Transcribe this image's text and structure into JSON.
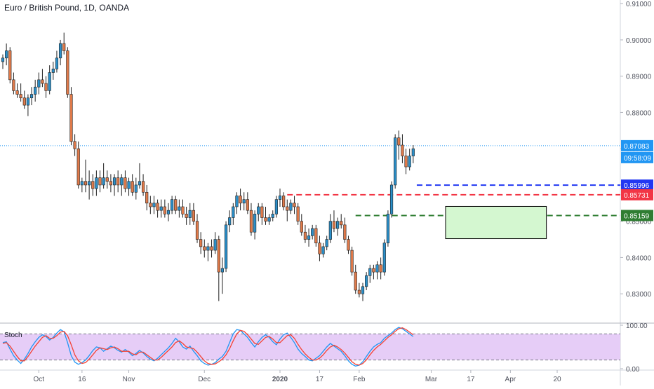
{
  "chart_data": {
    "type": "candlestick",
    "title": "Euro / British Pound, 1D, OANDA",
    "main_axis": {
      "ylim": [
        0.8225,
        0.911
      ],
      "ticks": [
        "0.91000",
        "0.90000",
        "0.89000",
        "0.88000",
        "0.87000",
        "0.86000",
        "0.85000",
        "0.84000",
        "0.83000"
      ]
    },
    "x_axis": {
      "labels": [
        {
          "label": "Oct",
          "index": 10
        },
        {
          "label": "16",
          "index": 22
        },
        {
          "label": "Nov",
          "index": 35
        },
        {
          "label": "Dec",
          "index": 56
        },
        {
          "label": "2020",
          "index": 77
        },
        {
          "label": "17",
          "index": 88
        },
        {
          "label": "Feb",
          "index": 99
        },
        {
          "label": "Mar",
          "index": 119
        },
        {
          "label": "17",
          "index": 130
        },
        {
          "label": "Apr",
          "index": 141
        },
        {
          "label": "20",
          "index": 154
        }
      ]
    },
    "candles": [
      [
        0.894,
        0.896,
        0.892,
        0.895
      ],
      [
        0.895,
        0.899,
        0.893,
        0.897
      ],
      [
        0.897,
        0.898,
        0.888,
        0.889
      ],
      [
        0.889,
        0.891,
        0.885,
        0.886
      ],
      [
        0.886,
        0.888,
        0.884,
        0.885
      ],
      [
        0.885,
        0.888,
        0.883,
        0.884
      ],
      [
        0.884,
        0.886,
        0.881,
        0.882
      ],
      [
        0.882,
        0.885,
        0.879,
        0.884
      ],
      [
        0.884,
        0.887,
        0.882,
        0.885
      ],
      [
        0.885,
        0.889,
        0.883,
        0.887
      ],
      [
        0.887,
        0.891,
        0.885,
        0.889
      ],
      [
        0.889,
        0.892,
        0.887,
        0.888
      ],
      [
        0.888,
        0.89,
        0.884,
        0.886
      ],
      [
        0.886,
        0.893,
        0.885,
        0.891
      ],
      [
        0.891,
        0.894,
        0.889,
        0.892
      ],
      [
        0.892,
        0.897,
        0.891,
        0.895
      ],
      [
        0.895,
        0.9,
        0.893,
        0.899
      ],
      [
        0.899,
        0.902,
        0.896,
        0.897
      ],
      [
        0.897,
        0.898,
        0.884,
        0.885
      ],
      [
        0.885,
        0.887,
        0.871,
        0.872
      ],
      [
        0.872,
        0.874,
        0.868,
        0.87
      ],
      [
        0.87,
        0.872,
        0.859,
        0.86
      ],
      [
        0.86,
        0.862,
        0.858,
        0.861
      ],
      [
        0.861,
        0.867,
        0.858,
        0.86
      ],
      [
        0.86,
        0.864,
        0.856,
        0.861
      ],
      [
        0.861,
        0.863,
        0.857,
        0.859
      ],
      [
        0.859,
        0.864,
        0.857,
        0.862
      ],
      [
        0.862,
        0.864,
        0.858,
        0.86
      ],
      [
        0.86,
        0.866,
        0.859,
        0.862
      ],
      [
        0.862,
        0.864,
        0.859,
        0.861
      ],
      [
        0.861,
        0.863,
        0.858,
        0.86
      ],
      [
        0.86,
        0.863,
        0.857,
        0.862
      ],
      [
        0.862,
        0.864,
        0.858,
        0.86
      ],
      [
        0.86,
        0.863,
        0.857,
        0.862
      ],
      [
        0.862,
        0.864,
        0.858,
        0.859
      ],
      [
        0.859,
        0.862,
        0.857,
        0.861
      ],
      [
        0.861,
        0.863,
        0.857,
        0.858
      ],
      [
        0.858,
        0.862,
        0.856,
        0.86
      ],
      [
        0.86,
        0.866,
        0.859,
        0.861
      ],
      [
        0.861,
        0.863,
        0.857,
        0.858
      ],
      [
        0.858,
        0.86,
        0.853,
        0.855
      ],
      [
        0.855,
        0.857,
        0.852,
        0.854
      ],
      [
        0.854,
        0.857,
        0.852,
        0.855
      ],
      [
        0.855,
        0.856,
        0.851,
        0.853
      ],
      [
        0.853,
        0.856,
        0.851,
        0.854
      ],
      [
        0.854,
        0.856,
        0.851,
        0.852
      ],
      [
        0.852,
        0.855,
        0.85,
        0.853
      ],
      [
        0.853,
        0.857,
        0.852,
        0.856
      ],
      [
        0.856,
        0.857,
        0.852,
        0.853
      ],
      [
        0.853,
        0.856,
        0.851,
        0.854
      ],
      [
        0.854,
        0.856,
        0.851,
        0.852
      ],
      [
        0.852,
        0.854,
        0.849,
        0.851
      ],
      [
        0.851,
        0.855,
        0.849,
        0.853
      ],
      [
        0.853,
        0.855,
        0.849,
        0.85
      ],
      [
        0.85,
        0.852,
        0.844,
        0.845
      ],
      [
        0.845,
        0.847,
        0.841,
        0.843
      ],
      [
        0.843,
        0.845,
        0.84,
        0.842
      ],
      [
        0.842,
        0.844,
        0.839,
        0.843
      ],
      [
        0.843,
        0.845,
        0.84,
        0.842
      ],
      [
        0.842,
        0.847,
        0.841,
        0.845
      ],
      [
        0.845,
        0.846,
        0.828,
        0.836
      ],
      [
        0.836,
        0.84,
        0.83,
        0.837
      ],
      [
        0.837,
        0.85,
        0.836,
        0.849
      ],
      [
        0.849,
        0.853,
        0.847,
        0.851
      ],
      [
        0.851,
        0.855,
        0.849,
        0.854
      ],
      [
        0.854,
        0.858,
        0.852,
        0.857
      ],
      [
        0.857,
        0.859,
        0.853,
        0.855
      ],
      [
        0.855,
        0.858,
        0.853,
        0.856
      ],
      [
        0.856,
        0.858,
        0.852,
        0.853
      ],
      [
        0.853,
        0.855,
        0.846,
        0.847
      ],
      [
        0.847,
        0.853,
        0.845,
        0.852
      ],
      [
        0.852,
        0.855,
        0.85,
        0.854
      ],
      [
        0.854,
        0.855,
        0.849,
        0.851
      ],
      [
        0.851,
        0.854,
        0.849,
        0.85
      ],
      [
        0.85,
        0.852,
        0.849,
        0.851
      ],
      [
        0.851,
        0.853,
        0.85,
        0.852
      ],
      [
        0.852,
        0.857,
        0.851,
        0.856
      ],
      [
        0.856,
        0.859,
        0.854,
        0.857
      ],
      [
        0.857,
        0.858,
        0.853,
        0.854
      ],
      [
        0.854,
        0.856,
        0.85,
        0.853
      ],
      [
        0.853,
        0.856,
        0.852,
        0.855
      ],
      [
        0.855,
        0.857,
        0.852,
        0.854
      ],
      [
        0.854,
        0.855,
        0.849,
        0.85
      ],
      [
        0.85,
        0.852,
        0.846,
        0.847
      ],
      [
        0.847,
        0.849,
        0.844,
        0.845
      ],
      [
        0.845,
        0.848,
        0.843,
        0.846
      ],
      [
        0.846,
        0.849,
        0.845,
        0.848
      ],
      [
        0.848,
        0.849,
        0.843,
        0.844
      ],
      [
        0.844,
        0.846,
        0.839,
        0.841
      ],
      [
        0.841,
        0.844,
        0.84,
        0.843
      ],
      [
        0.843,
        0.846,
        0.842,
        0.845
      ],
      [
        0.845,
        0.852,
        0.844,
        0.85
      ],
      [
        0.85,
        0.853,
        0.847,
        0.848
      ],
      [
        0.848,
        0.851,
        0.846,
        0.85
      ],
      [
        0.85,
        0.852,
        0.848,
        0.849
      ],
      [
        0.849,
        0.851,
        0.844,
        0.845
      ],
      [
        0.845,
        0.846,
        0.841,
        0.842
      ],
      [
        0.842,
        0.843,
        0.835,
        0.836
      ],
      [
        0.836,
        0.838,
        0.83,
        0.831
      ],
      [
        0.831,
        0.833,
        0.829,
        0.83
      ],
      [
        0.83,
        0.833,
        0.828,
        0.832
      ],
      [
        0.832,
        0.836,
        0.831,
        0.835
      ],
      [
        0.835,
        0.838,
        0.833,
        0.837
      ],
      [
        0.837,
        0.838,
        0.834,
        0.836
      ],
      [
        0.836,
        0.839,
        0.834,
        0.838
      ],
      [
        0.838,
        0.84,
        0.834,
        0.836
      ],
      [
        0.836,
        0.845,
        0.835,
        0.844
      ],
      [
        0.844,
        0.853,
        0.843,
        0.852
      ],
      [
        0.852,
        0.861,
        0.851,
        0.86
      ],
      [
        0.86,
        0.874,
        0.859,
        0.873
      ],
      [
        0.873,
        0.875,
        0.867,
        0.871
      ],
      [
        0.871,
        0.874,
        0.866,
        0.868
      ],
      [
        0.868,
        0.87,
        0.863,
        0.865
      ],
      [
        0.865,
        0.87,
        0.864,
        0.868
      ],
      [
        0.868,
        0.871,
        0.866,
        0.87
      ]
    ],
    "current_price": {
      "label": "0.87083",
      "value": 0.87083,
      "time": "09:58:09"
    },
    "levels": [
      {
        "label": "0.85996",
        "value": 0.85996,
        "color": "#2137f2",
        "start_index": 115
      },
      {
        "label": "0.85731",
        "value": 0.85731,
        "color": "#f23645",
        "start_index": 79
      },
      {
        "label": "0.85159",
        "value": 0.85159,
        "color": "#2f7d32",
        "start_index": 98
      }
    ],
    "zone": {
      "top": 0.8541,
      "bottom": 0.8452,
      "start_index": 123,
      "end_index": 151,
      "fill": "#d4f7d0"
    },
    "stoch": {
      "label": "Stoch",
      "ticks": [
        "100.00",
        "0.00"
      ],
      "upper_band": 80,
      "lower_band": 20,
      "k": [
        60,
        62,
        45,
        30,
        20,
        12,
        22,
        35,
        50,
        62,
        72,
        78,
        74,
        66,
        72,
        82,
        90,
        85,
        60,
        30,
        15,
        10,
        14,
        20,
        30,
        42,
        50,
        48,
        40,
        46,
        52,
        48,
        42,
        38,
        44,
        38,
        30,
        35,
        42,
        36,
        28,
        22,
        18,
        24,
        32,
        40,
        48,
        58,
        70,
        62,
        50,
        45,
        52,
        40,
        30,
        18,
        12,
        8,
        10,
        14,
        22,
        28,
        40,
        60,
        80,
        90,
        88,
        80,
        72,
        60,
        50,
        62,
        72,
        78,
        72,
        62,
        55,
        68,
        78,
        82,
        72,
        60,
        45,
        35,
        28,
        20,
        18,
        24,
        30,
        40,
        50,
        58,
        52,
        46,
        40,
        30,
        18,
        10,
        6,
        8,
        16,
        28,
        40,
        50,
        56,
        60,
        70,
        76,
        82,
        90,
        95,
        92,
        86,
        80,
        74
      ],
      "d": [
        58,
        60,
        52,
        40,
        28,
        18,
        18,
        28,
        40,
        52,
        62,
        72,
        76,
        70,
        70,
        76,
        84,
        86,
        76,
        55,
        32,
        18,
        12,
        14,
        22,
        32,
        42,
        48,
        46,
        44,
        48,
        50,
        46,
        40,
        40,
        40,
        34,
        32,
        38,
        38,
        32,
        26,
        20,
        20,
        26,
        34,
        42,
        50,
        60,
        64,
        58,
        50,
        48,
        46,
        38,
        28,
        18,
        12,
        10,
        11,
        16,
        22,
        32,
        46,
        64,
        80,
        88,
        86,
        78,
        68,
        58,
        56,
        64,
        72,
        74,
        68,
        60,
        60,
        68,
        76,
        78,
        70,
        56,
        44,
        34,
        26,
        20,
        20,
        24,
        32,
        42,
        50,
        54,
        50,
        44,
        36,
        26,
        16,
        10,
        8,
        12,
        20,
        32,
        42,
        50,
        56,
        64,
        72,
        78,
        86,
        92,
        94,
        90,
        84,
        78
      ]
    }
  }
}
